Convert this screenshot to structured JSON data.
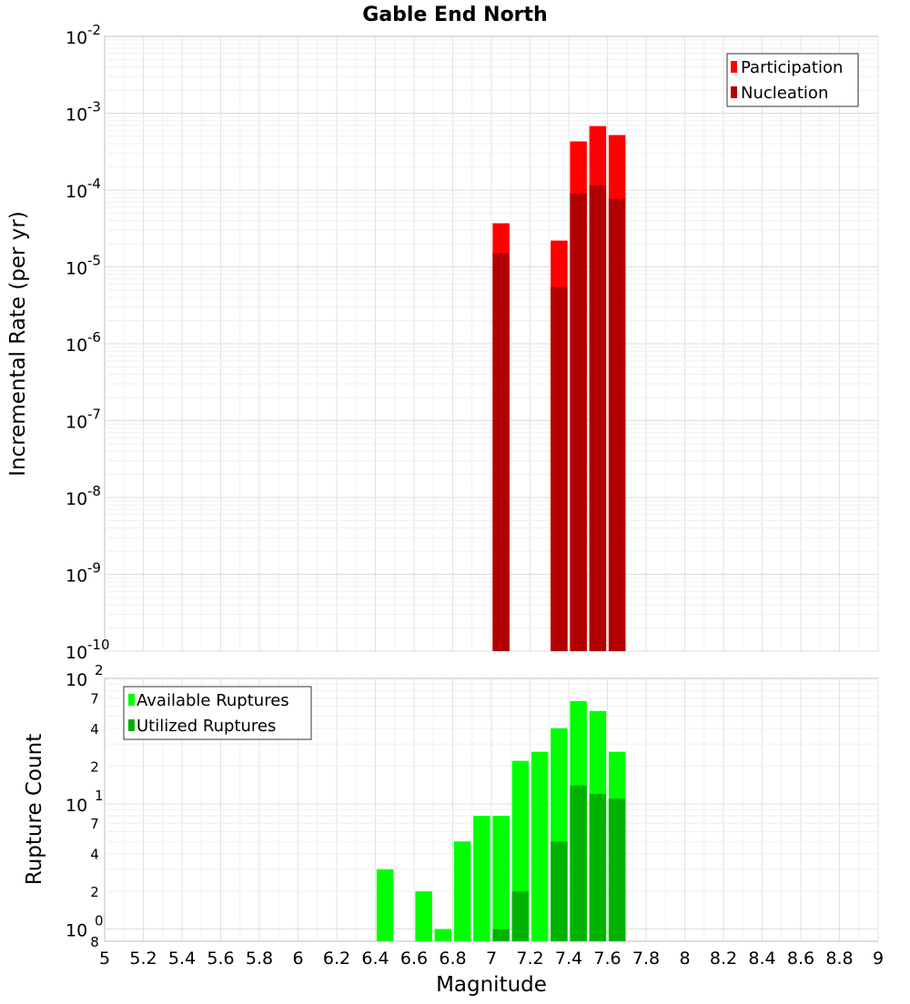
{
  "chart_data": [
    {
      "type": "bar",
      "title": "Gable End North",
      "xlabel": "",
      "ylabel": "Incremental Rate (per yr)",
      "yscale": "log",
      "xlim": [
        5,
        9
      ],
      "ylim": [
        1e-10,
        0.01
      ],
      "grid": true,
      "legend_position": "top-right",
      "y_ticks": [
        {
          "base": "10",
          "exp": "-10",
          "value": 1e-10
        },
        {
          "base": "10",
          "exp": "-9",
          "value": 1e-09
        },
        {
          "base": "10",
          "exp": "-8",
          "value": 1e-08
        },
        {
          "base": "10",
          "exp": "-7",
          "value": 1e-07
        },
        {
          "base": "10",
          "exp": "-6",
          "value": 1e-06
        },
        {
          "base": "10",
          "exp": "-5",
          "value": 1e-05
        },
        {
          "base": "10",
          "exp": "-4",
          "value": 0.0001
        },
        {
          "base": "10",
          "exp": "-3",
          "value": 0.001
        },
        {
          "base": "10",
          "exp": "-2",
          "value": 0.01
        }
      ],
      "series": [
        {
          "name": "Participation",
          "color": "#ff0000",
          "points": [
            {
              "x": 7.05,
              "y": 3.7e-05
            },
            {
              "x": 7.35,
              "y": 2.2e-05
            },
            {
              "x": 7.45,
              "y": 0.00043
            },
            {
              "x": 7.55,
              "y": 0.00068
            },
            {
              "x": 7.65,
              "y": 0.00052
            }
          ]
        },
        {
          "name": "Nucleation",
          "color": "#b20000",
          "points": [
            {
              "x": 7.05,
              "y": 1.5e-05
            },
            {
              "x": 7.35,
              "y": 5.5e-06
            },
            {
              "x": 7.45,
              "y": 9e-05
            },
            {
              "x": 7.55,
              "y": 0.000115
            },
            {
              "x": 7.65,
              "y": 7.7e-05
            }
          ]
        }
      ]
    },
    {
      "type": "bar",
      "title": "",
      "xlabel": "Magnitude",
      "ylabel": "Rupture Count",
      "yscale": "log",
      "xlim": [
        5,
        9
      ],
      "ylim": [
        0.8,
        100
      ],
      "grid": true,
      "legend_position": "top-left",
      "x_ticks": [
        "5",
        "5.2",
        "5.4",
        "5.6",
        "5.8",
        "6",
        "6.2",
        "6.4",
        "6.6",
        "6.8",
        "7",
        "7.2",
        "7.4",
        "7.6",
        "7.8",
        "8",
        "8.2",
        "8.4",
        "8.6",
        "8.8",
        "9"
      ],
      "y_major_ticks": [
        {
          "base": "10",
          "exp": "0",
          "value": 1
        },
        {
          "base": "10",
          "exp": "1",
          "value": 10
        },
        {
          "base": "10",
          "exp": "2",
          "value": 100
        }
      ],
      "y_minor_ticks": [
        {
          "label": "8",
          "value": 0.8
        },
        {
          "label": "2",
          "value": 2
        },
        {
          "label": "4",
          "value": 4
        },
        {
          "label": "7",
          "value": 7
        },
        {
          "label": "2",
          "value": 20
        },
        {
          "label": "4",
          "value": 40
        },
        {
          "label": "7",
          "value": 70
        }
      ],
      "series": [
        {
          "name": "Available Ruptures",
          "color": "#00ff00",
          "points": [
            {
              "x": 6.45,
              "y": 3
            },
            {
              "x": 6.65,
              "y": 2
            },
            {
              "x": 6.75,
              "y": 1
            },
            {
              "x": 6.85,
              "y": 5
            },
            {
              "x": 6.95,
              "y": 8
            },
            {
              "x": 7.05,
              "y": 8
            },
            {
              "x": 7.15,
              "y": 22
            },
            {
              "x": 7.25,
              "y": 26
            },
            {
              "x": 7.35,
              "y": 40
            },
            {
              "x": 7.45,
              "y": 66
            },
            {
              "x": 7.55,
              "y": 55
            },
            {
              "x": 7.65,
              "y": 26
            }
          ]
        },
        {
          "name": "Utilized Ruptures",
          "color": "#00b200",
          "points": [
            {
              "x": 7.05,
              "y": 1
            },
            {
              "x": 7.15,
              "y": 2
            },
            {
              "x": 7.35,
              "y": 5
            },
            {
              "x": 7.45,
              "y": 14
            },
            {
              "x": 7.55,
              "y": 12
            },
            {
              "x": 7.65,
              "y": 11
            }
          ]
        }
      ]
    }
  ]
}
